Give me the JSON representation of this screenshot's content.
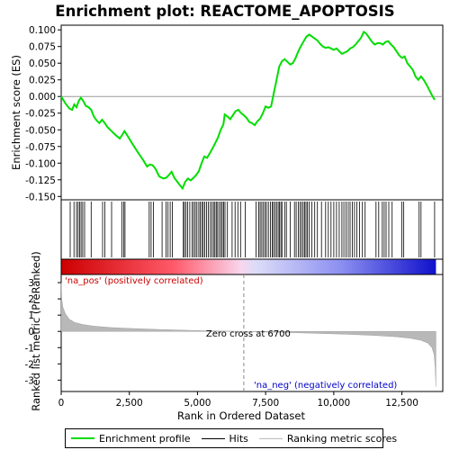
{
  "chart_data": {
    "type": "line",
    "title": "Enrichment plot: REACTOME_APOPTOSIS",
    "top_panel": {
      "ylabel": "Enrichment score (ES)",
      "ylim": [
        -0.155,
        0.107
      ],
      "yticks": [
        0.1,
        0.075,
        0.05,
        0.025,
        0.0,
        -0.025,
        -0.05,
        -0.075,
        -0.1,
        -0.125,
        -0.15
      ],
      "ytick_labels": [
        "0.100",
        "0.075",
        "0.050",
        "0.025",
        "0.000",
        "-0.025",
        "-0.050",
        "-0.075",
        "-0.100",
        "-0.125",
        "-0.150"
      ],
      "series_name": "Enrichment profile",
      "color": "#00dd00",
      "points": [
        [
          0,
          0.0
        ],
        [
          150,
          -0.01
        ],
        [
          300,
          -0.018
        ],
        [
          400,
          -0.02
        ],
        [
          480,
          -0.012
        ],
        [
          560,
          -0.016
        ],
        [
          650,
          -0.006
        ],
        [
          720,
          -0.002
        ],
        [
          800,
          -0.006
        ],
        [
          900,
          -0.014
        ],
        [
          1000,
          -0.016
        ],
        [
          1100,
          -0.02
        ],
        [
          1200,
          -0.03
        ],
        [
          1300,
          -0.036
        ],
        [
          1400,
          -0.04
        ],
        [
          1500,
          -0.035
        ],
        [
          1600,
          -0.04
        ],
        [
          1700,
          -0.046
        ],
        [
          1850,
          -0.052
        ],
        [
          2000,
          -0.058
        ],
        [
          2150,
          -0.063
        ],
        [
          2250,
          -0.057
        ],
        [
          2320,
          -0.052
        ],
        [
          2450,
          -0.06
        ],
        [
          2600,
          -0.07
        ],
        [
          2800,
          -0.083
        ],
        [
          3000,
          -0.095
        ],
        [
          3150,
          -0.105
        ],
        [
          3250,
          -0.102
        ],
        [
          3350,
          -0.103
        ],
        [
          3450,
          -0.108
        ],
        [
          3600,
          -0.12
        ],
        [
          3750,
          -0.123
        ],
        [
          3850,
          -0.122
        ],
        [
          3950,
          -0.118
        ],
        [
          4050,
          -0.113
        ],
        [
          4150,
          -0.122
        ],
        [
          4300,
          -0.13
        ],
        [
          4450,
          -0.138
        ],
        [
          4550,
          -0.128
        ],
        [
          4650,
          -0.123
        ],
        [
          4750,
          -0.126
        ],
        [
          4850,
          -0.122
        ],
        [
          4950,
          -0.118
        ],
        [
          5050,
          -0.112
        ],
        [
          5150,
          -0.1
        ],
        [
          5250,
          -0.09
        ],
        [
          5350,
          -0.092
        ],
        [
          5450,
          -0.085
        ],
        [
          5550,
          -0.078
        ],
        [
          5650,
          -0.07
        ],
        [
          5750,
          -0.062
        ],
        [
          5850,
          -0.05
        ],
        [
          5950,
          -0.042
        ],
        [
          6000,
          -0.027
        ],
        [
          6100,
          -0.03
        ],
        [
          6200,
          -0.034
        ],
        [
          6300,
          -0.028
        ],
        [
          6400,
          -0.022
        ],
        [
          6500,
          -0.02
        ],
        [
          6600,
          -0.025
        ],
        [
          6700,
          -0.028
        ],
        [
          6800,
          -0.032
        ],
        [
          6900,
          -0.038
        ],
        [
          7000,
          -0.04
        ],
        [
          7100,
          -0.043
        ],
        [
          7200,
          -0.037
        ],
        [
          7300,
          -0.033
        ],
        [
          7400,
          -0.025
        ],
        [
          7500,
          -0.015
        ],
        [
          7600,
          -0.017
        ],
        [
          7700,
          -0.015
        ],
        [
          7800,
          0.005
        ],
        [
          7900,
          0.025
        ],
        [
          8000,
          0.045
        ],
        [
          8100,
          0.053
        ],
        [
          8200,
          0.056
        ],
        [
          8300,
          0.052
        ],
        [
          8400,
          0.048
        ],
        [
          8500,
          0.05
        ],
        [
          8600,
          0.058
        ],
        [
          8700,
          0.068
        ],
        [
          8800,
          0.076
        ],
        [
          8900,
          0.083
        ],
        [
          9000,
          0.09
        ],
        [
          9100,
          0.093
        ],
        [
          9200,
          0.09
        ],
        [
          9300,
          0.087
        ],
        [
          9400,
          0.084
        ],
        [
          9500,
          0.079
        ],
        [
          9600,
          0.075
        ],
        [
          9700,
          0.073
        ],
        [
          9800,
          0.074
        ],
        [
          9900,
          0.072
        ],
        [
          10000,
          0.07
        ],
        [
          10100,
          0.072
        ],
        [
          10200,
          0.068
        ],
        [
          10300,
          0.064
        ],
        [
          10400,
          0.066
        ],
        [
          10500,
          0.068
        ],
        [
          10600,
          0.072
        ],
        [
          10700,
          0.074
        ],
        [
          10800,
          0.078
        ],
        [
          10900,
          0.083
        ],
        [
          11000,
          0.088
        ],
        [
          11100,
          0.097
        ],
        [
          11200,
          0.094
        ],
        [
          11300,
          0.088
        ],
        [
          11400,
          0.082
        ],
        [
          11500,
          0.078
        ],
        [
          11600,
          0.08
        ],
        [
          11700,
          0.08
        ],
        [
          11800,
          0.078
        ],
        [
          11900,
          0.082
        ],
        [
          12000,
          0.083
        ],
        [
          12100,
          0.078
        ],
        [
          12200,
          0.074
        ],
        [
          12300,
          0.068
        ],
        [
          12400,
          0.062
        ],
        [
          12500,
          0.058
        ],
        [
          12600,
          0.06
        ],
        [
          12700,
          0.05
        ],
        [
          12800,
          0.045
        ],
        [
          12900,
          0.04
        ],
        [
          13000,
          0.03
        ],
        [
          13100,
          0.025
        ],
        [
          13200,
          0.03
        ],
        [
          13300,
          0.025
        ],
        [
          13400,
          0.018
        ],
        [
          13500,
          0.01
        ],
        [
          13600,
          0.002
        ],
        [
          13700,
          -0.005
        ]
      ]
    },
    "hits": [
      330,
      470,
      560,
      620,
      680,
      730,
      790,
      860,
      1100,
      1520,
      1600,
      1850,
      2230,
      2290,
      2340,
      3230,
      3300,
      3380,
      3700,
      3850,
      3920,
      4000,
      4080,
      4480,
      4520,
      4580,
      4640,
      4720,
      4800,
      4860,
      4920,
      4980,
      5050,
      5100,
      5160,
      5210,
      5270,
      5330,
      5400,
      5470,
      5530,
      5590,
      5640,
      5690,
      5740,
      5800,
      5860,
      5910,
      5960,
      6010,
      6100,
      6270,
      6380,
      6480,
      6580,
      6750,
      7150,
      7250,
      7300,
      7360,
      7420,
      7480,
      7530,
      7600,
      7680,
      7740,
      7790,
      7850,
      7900,
      7960,
      8010,
      8060,
      8100,
      8200,
      8260,
      8400,
      8560,
      8620,
      8700,
      8760,
      8820,
      8880,
      8930,
      8980,
      9030,
      9100,
      9200,
      9300,
      9400,
      9550,
      9700,
      9800,
      9900,
      10000,
      10100,
      10200,
      10300,
      10370,
      10450,
      10530,
      10600,
      10680,
      10760,
      10850,
      10950,
      11050,
      11150,
      11550,
      11650,
      11780,
      11850,
      11920,
      12020,
      12140,
      12500,
      12560,
      13130,
      13200,
      13700
    ],
    "hits_label": "Hits",
    "rank_panel": {
      "ylabel": "Ranked list metric (PreRanked)",
      "xlabel": "Rank in Ordered Dataset",
      "xlim": [
        0,
        14000
      ],
      "xticks": [
        0,
        2500,
        5000,
        7500,
        10000,
        12500
      ],
      "xtick_labels": [
        "0",
        "2,500",
        "5,000",
        "7,500",
        "10,000",
        "12,500"
      ],
      "ylim": [
        -3.7,
        3.5
      ],
      "yticks": [
        3,
        2,
        1,
        0,
        -1,
        -2,
        -3
      ],
      "ytick_labels": [
        "3",
        "2",
        "1",
        "0",
        "-1",
        "-2",
        "-3"
      ],
      "series_name": "Ranking metric scores",
      "points": [
        [
          0,
          3.0
        ],
        [
          20,
          2.0
        ],
        [
          60,
          1.5
        ],
        [
          150,
          1.1
        ],
        [
          300,
          0.75
        ],
        [
          500,
          0.55
        ],
        [
          800,
          0.42
        ],
        [
          1200,
          0.32
        ],
        [
          1800,
          0.24
        ],
        [
          2500,
          0.18
        ],
        [
          3500,
          0.12
        ],
        [
          4500,
          0.07
        ],
        [
          5500,
          0.03
        ],
        [
          6700,
          0.0
        ],
        [
          7500,
          -0.04
        ],
        [
          8500,
          -0.08
        ],
        [
          9500,
          -0.13
        ],
        [
          10500,
          -0.18
        ],
        [
          11500,
          -0.25
        ],
        [
          12300,
          -0.33
        ],
        [
          12800,
          -0.42
        ],
        [
          13200,
          -0.55
        ],
        [
          13450,
          -0.72
        ],
        [
          13600,
          -1.0
        ],
        [
          13680,
          -1.4
        ],
        [
          13720,
          -2.2
        ],
        [
          13745,
          -3.4
        ]
      ],
      "zero_cross_rank": 6700,
      "zero_cross_label": "Zero cross at 6700",
      "pos_label": "'na_pos' (positively correlated)",
      "neg_label": "'na_neg' (negatively correlated)",
      "pos_color": "#cc0000",
      "neg_color": "#0000cc"
    },
    "max_rank": 13750,
    "legend": [
      {
        "name": "Enrichment profile",
        "color": "#00dd00"
      },
      {
        "name": "Hits",
        "color": "#000000"
      },
      {
        "name": "Ranking metric scores",
        "color": "#bbbbbb"
      }
    ]
  }
}
